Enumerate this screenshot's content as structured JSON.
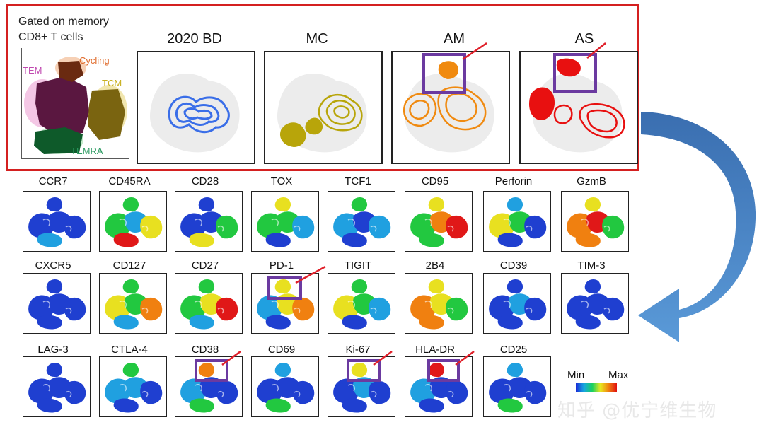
{
  "header": {
    "gate_line1": "Gated on memory",
    "gate_line2": "CD8+ T cells"
  },
  "overview": {
    "populations": [
      {
        "label": "TEM",
        "color": "#c04ab0"
      },
      {
        "label": "Cycling",
        "color": "#e06a2a"
      },
      {
        "label": "TCM",
        "color": "#c8b020"
      },
      {
        "label": "TEMRA",
        "color": "#2a9a60"
      }
    ]
  },
  "conditions": [
    {
      "label": "2020 BD",
      "color": "#3a6ee8"
    },
    {
      "label": "MC",
      "color": "#b8a50a"
    },
    {
      "label": "AM",
      "color": "#f08a10"
    },
    {
      "label": "AS",
      "color": "#e81010"
    }
  ],
  "markers": {
    "row1": [
      "CCR7",
      "CD45RA",
      "CD28",
      "TOX",
      "TCF1",
      "CD95",
      "Perforin",
      "GzmB"
    ],
    "row2": [
      "CXCR5",
      "CD127",
      "CD27",
      "PD-1",
      "TIGIT",
      "2B4",
      "CD39",
      "TIM-3"
    ],
    "row3": [
      "LAG-3",
      "CTLA-4",
      "CD38",
      "CD69",
      "Ki-67",
      "HLA-DR",
      "CD25"
    ]
  },
  "highlighted_markers": [
    "PD-1",
    "CD38",
    "Ki-67",
    "HLA-DR"
  ],
  "legend": {
    "min_label": "Min",
    "max_label": "Max"
  },
  "watermark": "知乎 @优宁维生物",
  "colors": {
    "box_border": "#d42020",
    "highlight": "#6b3aa0",
    "arrow": "#4a86c8",
    "pointer": "#e0202a"
  }
}
